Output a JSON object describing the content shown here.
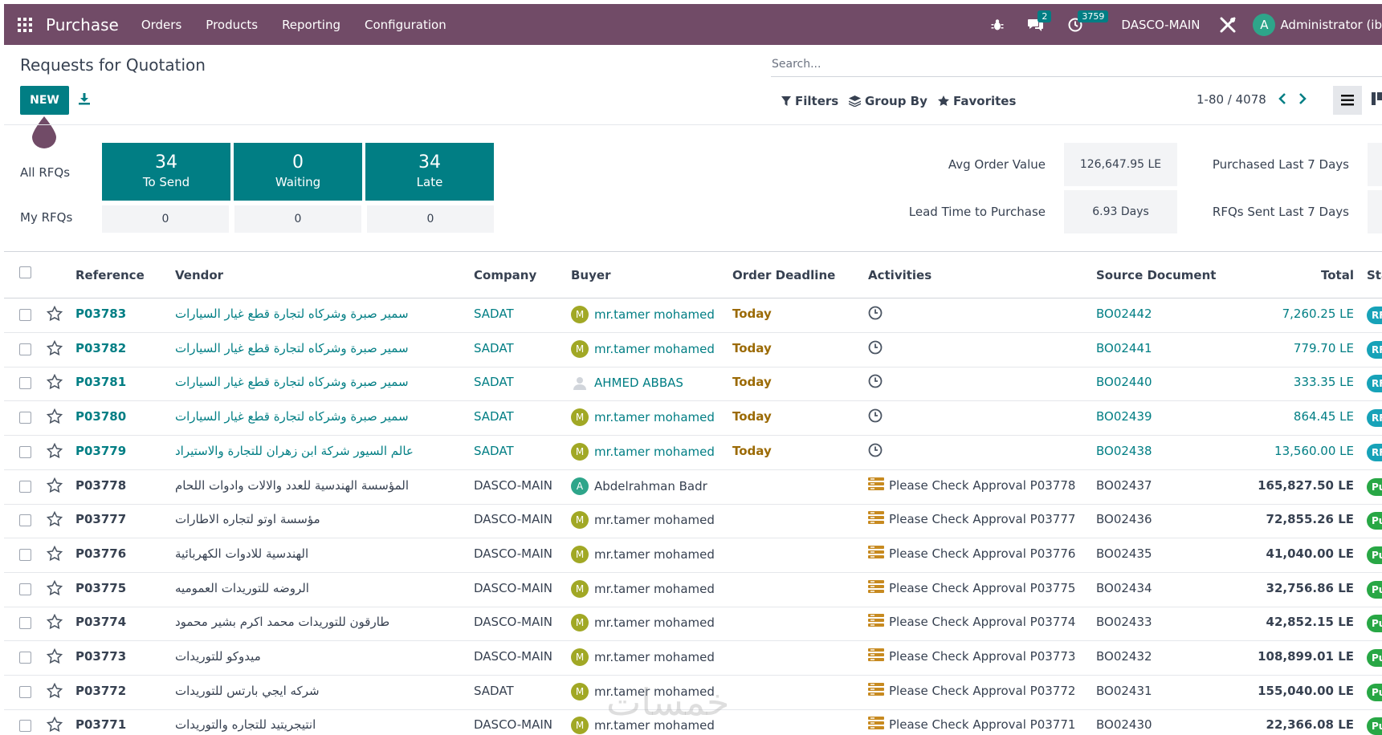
{
  "topbar": {
    "app_title": "Purchase",
    "nav": [
      "Orders",
      "Products",
      "Reporting",
      "Configuration"
    ],
    "chat_count": "2",
    "activity_count": "3759",
    "company": "DASCO-MAIN",
    "avatar_letter": "A",
    "user": "Administrator (ib"
  },
  "header": {
    "title": "Requests for Quotation",
    "new_label": "NEW",
    "search_placeholder": "Search...",
    "filters_label": "Filters",
    "groupby_label": "Group By",
    "favorites_label": "Favorites",
    "pager": "1-80 / 4078"
  },
  "dashboard": {
    "all_label": "All RFQs",
    "my_label": "My RFQs",
    "tiles": [
      {
        "num": "34",
        "label": "To Send"
      },
      {
        "num": "0",
        "label": "Waiting"
      },
      {
        "num": "34",
        "label": "Late"
      }
    ],
    "my_values": [
      "0",
      "0",
      "0"
    ],
    "kpis": [
      {
        "label": "Avg Order Value",
        "value": "126,647.95 LE"
      },
      {
        "label": "Lead Time to Purchase",
        "value": "6.93 Days"
      },
      {
        "label": "Purchased Last 7 Days",
        "value": ""
      },
      {
        "label": "RFQs Sent Last 7 Days",
        "value": ""
      }
    ]
  },
  "table": {
    "columns": [
      "Reference",
      "Vendor",
      "Company",
      "Buyer",
      "Order Deadline",
      "Activities",
      "Source Document",
      "Total",
      "Sta"
    ],
    "rows": [
      {
        "ref": "P03783",
        "vendor": "سمير صبرة وشركاه لتجارة قطع غيار السيارات",
        "company": "SADAT",
        "buyer": "mr.tamer mohamed",
        "buyer_initial": "M",
        "deadline": "Today",
        "activity": "",
        "source": "BO02442",
        "total": "7,260.25 LE",
        "status": "RFQ",
        "kind": "link"
      },
      {
        "ref": "P03782",
        "vendor": "سمير صبرة وشركاه لتجارة قطع غيار السيارات",
        "company": "SADAT",
        "buyer": "mr.tamer mohamed",
        "buyer_initial": "M",
        "deadline": "Today",
        "activity": "",
        "source": "BO02441",
        "total": "779.70 LE",
        "status": "RFQ",
        "kind": "link"
      },
      {
        "ref": "P03781",
        "vendor": "سمير صبرة وشركاه لتجارة قطع غيار السيارات",
        "company": "SADAT",
        "buyer": "AHMED ABBAS",
        "buyer_initial": "",
        "deadline": "Today",
        "activity": "",
        "source": "BO02440",
        "total": "333.35 LE",
        "status": "RFQ",
        "kind": "link"
      },
      {
        "ref": "P03780",
        "vendor": "سمير صبرة وشركاه لتجارة قطع غيار السيارات",
        "company": "SADAT",
        "buyer": "mr.tamer mohamed",
        "buyer_initial": "M",
        "deadline": "Today",
        "activity": "",
        "source": "BO02439",
        "total": "864.45 LE",
        "status": "RFQ",
        "kind": "link"
      },
      {
        "ref": "P03779",
        "vendor": "عالم السيور شركة ابن زهران للتجارة والاستيراد",
        "company": "SADAT",
        "buyer": "mr.tamer mohamed",
        "buyer_initial": "M",
        "deadline": "Today",
        "activity": "",
        "source": "BO02438",
        "total": "13,560.00 LE",
        "status": "RFQ",
        "kind": "link"
      },
      {
        "ref": "P03778",
        "vendor": "المؤسسة الهندسية للعدد والالات وادوات اللحام",
        "company": "DASCO-MAIN",
        "buyer": "Abdelrahman Badr",
        "buyer_initial": "A",
        "deadline": "",
        "activity": "Please Check Approval P03778",
        "source": "BO02437",
        "total": "165,827.50 LE",
        "status": "Pu",
        "kind": "plain"
      },
      {
        "ref": "P03777",
        "vendor": "مؤسسة اوتو لتجاره الاطارات",
        "company": "DASCO-MAIN",
        "buyer": "mr.tamer mohamed",
        "buyer_initial": "M",
        "deadline": "",
        "activity": "Please Check Approval P03777",
        "source": "BO02436",
        "total": "72,855.26 LE",
        "status": "Pu",
        "kind": "plain"
      },
      {
        "ref": "P03776",
        "vendor": "الهندسية للادوات الكهربائية",
        "company": "DASCO-MAIN",
        "buyer": "mr.tamer mohamed",
        "buyer_initial": "M",
        "deadline": "",
        "activity": "Please Check Approval P03776",
        "source": "BO02435",
        "total": "41,040.00 LE",
        "status": "Pu",
        "kind": "plain"
      },
      {
        "ref": "P03775",
        "vendor": "الروضه للتوريدات العموميه",
        "company": "DASCO-MAIN",
        "buyer": "mr.tamer mohamed",
        "buyer_initial": "M",
        "deadline": "",
        "activity": "Please Check Approval P03775",
        "source": "BO02434",
        "total": "32,756.86 LE",
        "status": "Pu",
        "kind": "plain"
      },
      {
        "ref": "P03774",
        "vendor": "طارقون للتوريدات محمد اكرم بشير محمود",
        "company": "DASCO-MAIN",
        "buyer": "mr.tamer mohamed",
        "buyer_initial": "M",
        "deadline": "",
        "activity": "Please Check Approval P03774",
        "source": "BO02433",
        "total": "42,852.15 LE",
        "status": "Pu",
        "kind": "plain"
      },
      {
        "ref": "P03773",
        "vendor": "ميدوكو للتوريدات",
        "company": "DASCO-MAIN",
        "buyer": "mr.tamer mohamed",
        "buyer_initial": "M",
        "deadline": "",
        "activity": "Please Check Approval P03773",
        "source": "BO02432",
        "total": "108,899.01 LE",
        "status": "Pu",
        "kind": "plain"
      },
      {
        "ref": "P03772",
        "vendor": "شركه ايجي بارتس للتوريدات",
        "company": "SADAT",
        "buyer": "mr.tamer mohamed",
        "buyer_initial": "M",
        "deadline": "",
        "activity": "Please Check Approval P03772",
        "source": "BO02431",
        "total": "155,040.00 LE",
        "status": "Pu",
        "kind": "plain"
      },
      {
        "ref": "P03771",
        "vendor": "انتيجريتيد للتجاره والتوريدات",
        "company": "DASCO-MAIN",
        "buyer": "mr.tamer mohamed",
        "buyer_initial": "M",
        "deadline": "",
        "activity": "Please Check Approval P03771",
        "source": "BO02430",
        "total": "22,366.08 LE",
        "status": "Pu",
        "kind": "plain"
      }
    ]
  },
  "watermark": "خمسات",
  "colors": {
    "brand": "#714b67",
    "accent": "#017e84",
    "deadline": "#9b6a04",
    "status_rfq": "#17a2b8",
    "status_purchase": "#28a745"
  }
}
